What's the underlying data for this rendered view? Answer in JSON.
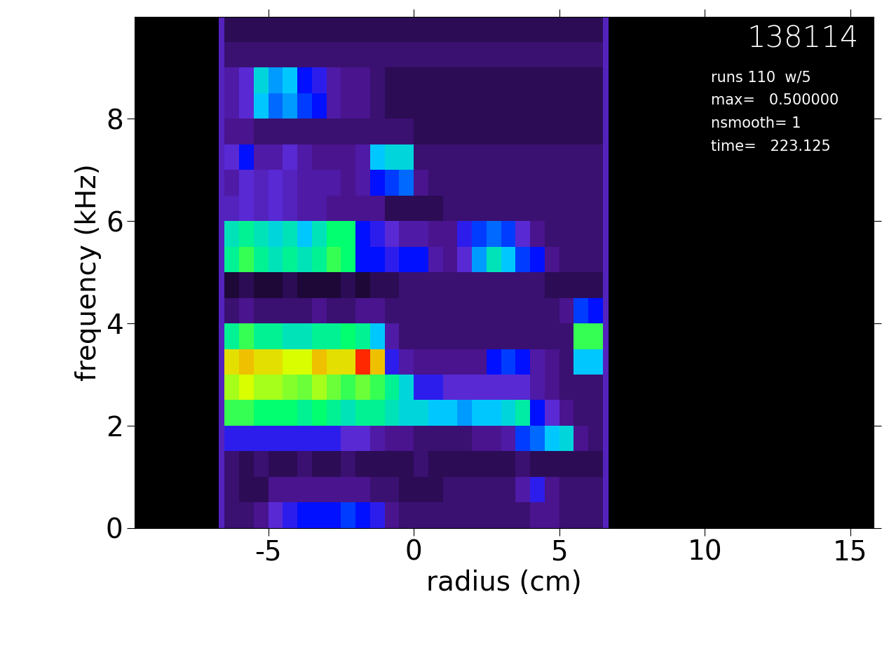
{
  "chart_data": {
    "type": "heatmap",
    "xlabel": "radius (cm)",
    "ylabel": "frequency (kHz)",
    "xlim": [
      -9.6,
      15.8
    ],
    "ylim": [
      0,
      10
    ],
    "xticks": [
      -5,
      0,
      5,
      10,
      15
    ],
    "yticks": [
      0,
      2,
      4,
      6,
      8
    ],
    "grid": false,
    "annotations": [
      "138114",
      "runs 110  w/5",
      "max=   0.500000",
      "nsmooth= 1",
      "time=   223.125"
    ],
    "x_edges": [
      -6.7,
      -6.5,
      -6.0,
      -5.5,
      -5.0,
      -4.5,
      -4.0,
      -3.5,
      -3.0,
      -2.5,
      -2.0,
      -1.5,
      -1.0,
      -0.5,
      0.0,
      0.5,
      1.0,
      1.5,
      2.0,
      2.5,
      3.0,
      3.5,
      4.0,
      4.5,
      5.0,
      5.5,
      6.0,
      6.5,
      6.7
    ],
    "y_edges": [
      0,
      0.5,
      1,
      1.5,
      2,
      2.5,
      3,
      3.5,
      4,
      4.5,
      5,
      5.5,
      6,
      6.5,
      7,
      7.5,
      8,
      8.5,
      9,
      9.5,
      10
    ],
    "zlim": [
      0,
      0.5
    ],
    "cells": [
      [
        0.07,
        0.04,
        0.04,
        0.05,
        0.08,
        0.1,
        0.12,
        0.12,
        0.12,
        0.14,
        0.12,
        0.1,
        0.05,
        0.04,
        0.04,
        0.04,
        0.04,
        0.04,
        0.04,
        0.04,
        0.04,
        0.04,
        0.05,
        0.05,
        0.04,
        0.04,
        0.04,
        0.07
      ],
      [
        0.07,
        0.04,
        0.03,
        0.03,
        0.05,
        0.05,
        0.05,
        0.05,
        0.05,
        0.05,
        0.05,
        0.04,
        0.04,
        0.03,
        0.03,
        0.03,
        0.04,
        0.04,
        0.04,
        0.04,
        0.04,
        0.06,
        0.1,
        0.05,
        0.04,
        0.04,
        0.04,
        0.07
      ],
      [
        0.07,
        0.04,
        0.03,
        0.04,
        0.03,
        0.03,
        0.04,
        0.03,
        0.03,
        0.04,
        0.03,
        0.03,
        0.03,
        0.03,
        0.04,
        0.03,
        0.03,
        0.03,
        0.03,
        0.03,
        0.03,
        0.04,
        0.03,
        0.03,
        0.03,
        0.03,
        0.03,
        0.07
      ],
      [
        0.07,
        0.1,
        0.1,
        0.1,
        0.1,
        0.1,
        0.1,
        0.1,
        0.1,
        0.08,
        0.08,
        0.06,
        0.05,
        0.05,
        0.04,
        0.04,
        0.04,
        0.04,
        0.05,
        0.05,
        0.06,
        0.14,
        0.16,
        0.2,
        0.22,
        0.05,
        0.04,
        0.07
      ],
      [
        0.07,
        0.3,
        0.3,
        0.28,
        0.28,
        0.28,
        0.26,
        0.28,
        0.26,
        0.24,
        0.26,
        0.26,
        0.24,
        0.22,
        0.22,
        0.2,
        0.2,
        0.18,
        0.2,
        0.2,
        0.22,
        0.25,
        0.12,
        0.08,
        0.05,
        0.04,
        0.04,
        0.07
      ],
      [
        0.07,
        0.34,
        0.36,
        0.34,
        0.34,
        0.33,
        0.32,
        0.34,
        0.32,
        0.3,
        0.32,
        0.3,
        0.26,
        0.22,
        0.1,
        0.1,
        0.08,
        0.08,
        0.08,
        0.08,
        0.08,
        0.08,
        0.06,
        0.05,
        0.04,
        0.04,
        0.04,
        0.07
      ],
      [
        0.07,
        0.38,
        0.4,
        0.38,
        0.38,
        0.36,
        0.36,
        0.4,
        0.38,
        0.38,
        0.48,
        0.4,
        0.1,
        0.06,
        0.05,
        0.05,
        0.05,
        0.05,
        0.05,
        0.12,
        0.14,
        0.12,
        0.06,
        0.05,
        0.04,
        0.2,
        0.2,
        0.07
      ],
      [
        0.07,
        0.26,
        0.3,
        0.26,
        0.26,
        0.24,
        0.24,
        0.26,
        0.26,
        0.28,
        0.26,
        0.2,
        0.06,
        0.04,
        0.04,
        0.04,
        0.04,
        0.04,
        0.04,
        0.04,
        0.04,
        0.04,
        0.04,
        0.04,
        0.04,
        0.3,
        0.3,
        0.07
      ],
      [
        0.07,
        0.04,
        0.05,
        0.04,
        0.04,
        0.04,
        0.04,
        0.05,
        0.04,
        0.04,
        0.05,
        0.05,
        0.04,
        0.04,
        0.04,
        0.04,
        0.04,
        0.04,
        0.04,
        0.04,
        0.04,
        0.04,
        0.04,
        0.04,
        0.05,
        0.14,
        0.12,
        0.07
      ],
      [
        0.07,
        0.02,
        0.03,
        0.02,
        0.02,
        0.03,
        0.02,
        0.02,
        0.02,
        0.03,
        0.02,
        0.03,
        0.03,
        0.04,
        0.04,
        0.04,
        0.04,
        0.04,
        0.04,
        0.04,
        0.04,
        0.04,
        0.04,
        0.03,
        0.03,
        0.03,
        0.03,
        0.07
      ],
      [
        0.07,
        0.26,
        0.3,
        0.26,
        0.24,
        0.26,
        0.24,
        0.26,
        0.3,
        0.28,
        0.12,
        0.12,
        0.1,
        0.12,
        0.12,
        0.06,
        0.05,
        0.08,
        0.18,
        0.24,
        0.2,
        0.14,
        0.12,
        0.05,
        0.04,
        0.04,
        0.04,
        0.07
      ],
      [
        0.07,
        0.24,
        0.26,
        0.24,
        0.22,
        0.24,
        0.2,
        0.24,
        0.28,
        0.28,
        0.12,
        0.1,
        0.08,
        0.06,
        0.06,
        0.05,
        0.05,
        0.1,
        0.14,
        0.16,
        0.14,
        0.08,
        0.05,
        0.04,
        0.04,
        0.04,
        0.04,
        0.07
      ],
      [
        0.07,
        0.07,
        0.08,
        0.07,
        0.08,
        0.07,
        0.06,
        0.06,
        0.05,
        0.05,
        0.05,
        0.05,
        0.03,
        0.03,
        0.03,
        0.03,
        0.04,
        0.04,
        0.04,
        0.04,
        0.04,
        0.04,
        0.04,
        0.04,
        0.04,
        0.04,
        0.04,
        0.07
      ],
      [
        0.07,
        0.06,
        0.08,
        0.07,
        0.08,
        0.07,
        0.06,
        0.06,
        0.06,
        0.05,
        0.06,
        0.12,
        0.14,
        0.16,
        0.05,
        0.04,
        0.04,
        0.04,
        0.04,
        0.04,
        0.04,
        0.04,
        0.04,
        0.04,
        0.04,
        0.04,
        0.04,
        0.07
      ],
      [
        0.07,
        0.08,
        0.12,
        0.06,
        0.06,
        0.08,
        0.06,
        0.05,
        0.05,
        0.05,
        0.06,
        0.2,
        0.22,
        0.22,
        0.04,
        0.04,
        0.04,
        0.04,
        0.04,
        0.04,
        0.04,
        0.04,
        0.04,
        0.04,
        0.04,
        0.04,
        0.04,
        0.07
      ],
      [
        0.07,
        0.05,
        0.05,
        0.04,
        0.04,
        0.04,
        0.04,
        0.04,
        0.04,
        0.04,
        0.04,
        0.04,
        0.04,
        0.04,
        0.03,
        0.03,
        0.03,
        0.03,
        0.03,
        0.03,
        0.03,
        0.03,
        0.03,
        0.03,
        0.03,
        0.03,
        0.03,
        0.07
      ],
      [
        0.07,
        0.06,
        0.08,
        0.2,
        0.16,
        0.18,
        0.14,
        0.12,
        0.06,
        0.05,
        0.05,
        0.04,
        0.03,
        0.03,
        0.03,
        0.03,
        0.03,
        0.03,
        0.03,
        0.03,
        0.03,
        0.03,
        0.03,
        0.03,
        0.03,
        0.03,
        0.03,
        0.07
      ],
      [
        0.07,
        0.06,
        0.08,
        0.22,
        0.18,
        0.2,
        0.12,
        0.1,
        0.06,
        0.05,
        0.05,
        0.04,
        0.03,
        0.03,
        0.03,
        0.03,
        0.03,
        0.03,
        0.03,
        0.03,
        0.03,
        0.03,
        0.03,
        0.03,
        0.03,
        0.03,
        0.03,
        0.07
      ],
      [
        0.07,
        0.04,
        0.04,
        0.04,
        0.04,
        0.04,
        0.04,
        0.04,
        0.04,
        0.04,
        0.04,
        0.04,
        0.04,
        0.04,
        0.04,
        0.04,
        0.04,
        0.04,
        0.04,
        0.04,
        0.04,
        0.04,
        0.04,
        0.04,
        0.04,
        0.04,
        0.04,
        0.07
      ],
      [
        0.07,
        0.03,
        0.03,
        0.03,
        0.03,
        0.03,
        0.03,
        0.03,
        0.03,
        0.03,
        0.03,
        0.03,
        0.03,
        0.03,
        0.03,
        0.03,
        0.03,
        0.03,
        0.03,
        0.03,
        0.03,
        0.03,
        0.03,
        0.03,
        0.03,
        0.03,
        0.03,
        0.07
      ]
    ]
  }
}
